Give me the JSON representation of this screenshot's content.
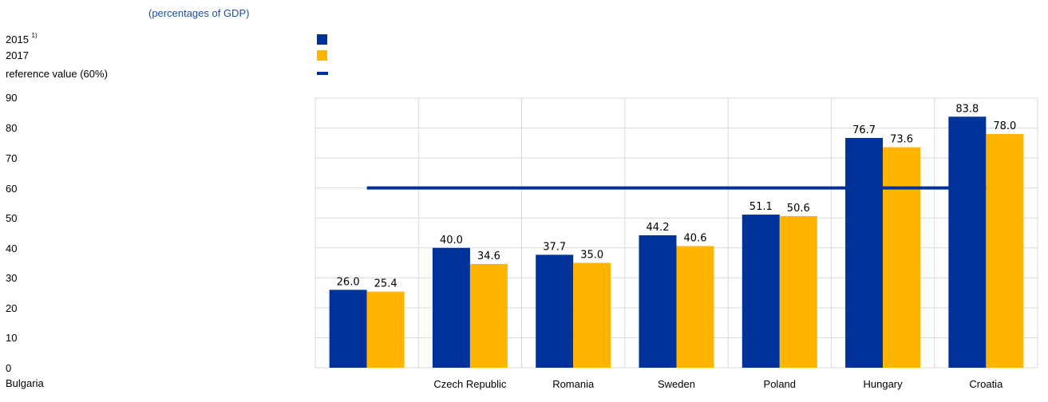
{
  "subtitle": "(percentages of GDP)",
  "legend": [
    {
      "label": "2015",
      "sup": "1)",
      "color": "#003299",
      "kind": "swatch"
    },
    {
      "label": "2017",
      "sup": "",
      "color": "#ffb400",
      "kind": "swatch"
    },
    {
      "label": "reference value (60%)",
      "sup": "",
      "color": "#003299",
      "kind": "line"
    }
  ],
  "colors": {
    "s2015": "#003299",
    "s2017": "#ffb400",
    "reference": "#003299",
    "grid": "#d9d9d9",
    "tick": "#000000"
  },
  "chart_data": {
    "type": "bar",
    "subtitle": "(percentages of GDP)",
    "categories": [
      "Bulgaria",
      "Czech Republic",
      "Romania",
      "Sweden",
      "Poland",
      "Hungary",
      "Croatia"
    ],
    "series": [
      {
        "name": "2015",
        "values": [
          26.0,
          40.0,
          37.7,
          44.2,
          51.1,
          76.7,
          83.8
        ]
      },
      {
        "name": "2017",
        "values": [
          25.4,
          34.6,
          35.0,
          40.6,
          50.6,
          73.6,
          78.0
        ]
      }
    ],
    "value_labels": [
      [
        "26.0",
        "40.0",
        "37.7",
        "44.2",
        "51.1",
        "76.7",
        "83.8"
      ],
      [
        "25.4",
        "34.6",
        "35.0",
        "40.6",
        "50.6",
        "73.6",
        "78.0"
      ]
    ],
    "reference": {
      "name": "reference value (60%)",
      "value": 60
    },
    "yticks": [
      "0",
      "10",
      "20",
      "30",
      "40",
      "50",
      "60",
      "70",
      "80",
      "90"
    ],
    "ylim": [
      0,
      90
    ],
    "grid": true,
    "legend_position": "top-left"
  }
}
